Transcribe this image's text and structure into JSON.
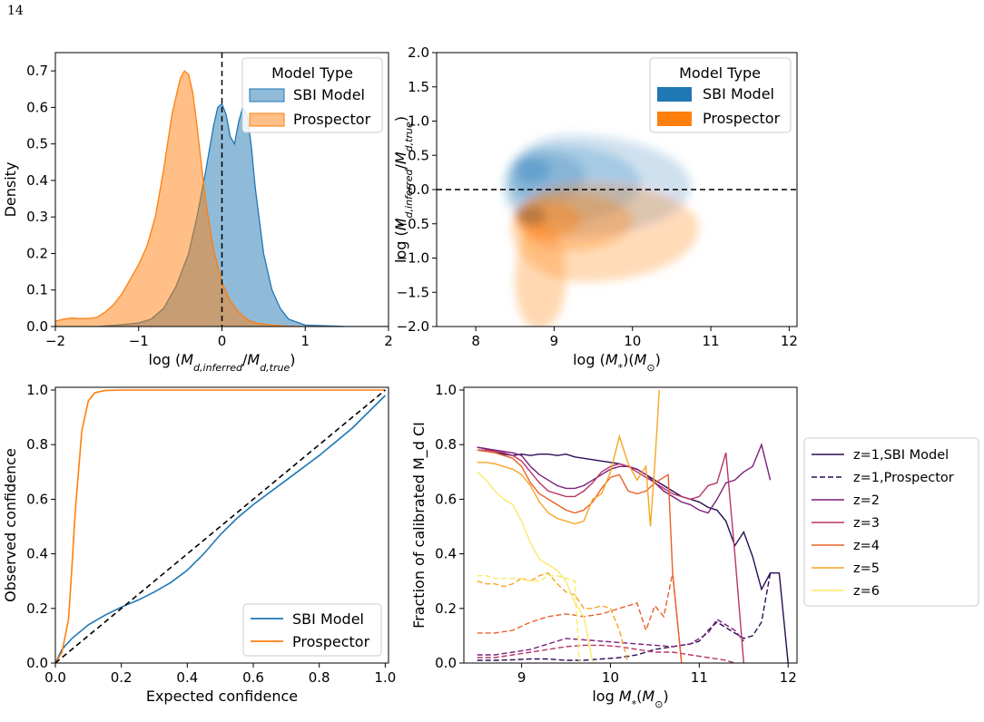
{
  "page_number": "14",
  "chart_data": [
    {
      "id": "density",
      "type": "area",
      "xlabel": "log (M_{d,inferred}/M_{d,true})",
      "ylabel": "Density",
      "xlim": [
        -2,
        2
      ],
      "ylim": [
        0,
        0.75
      ],
      "xticks": [
        "−2",
        "−1",
        "0",
        "1",
        "2"
      ],
      "yticks": [
        "0.0",
        "0.1",
        "0.2",
        "0.3",
        "0.4",
        "0.5",
        "0.6",
        "0.7"
      ],
      "reference_line": {
        "x": 0,
        "style": "dashed"
      },
      "legend": {
        "title": "Model Type",
        "placement": "top-right",
        "entries": [
          "SBI Model",
          "Prospector"
        ]
      },
      "series": [
        {
          "name": "SBI Model",
          "color": "#1f77b4",
          "x": [
            -2,
            -1.5,
            -1.2,
            -1.0,
            -0.85,
            -0.7,
            -0.55,
            -0.4,
            -0.3,
            -0.2,
            -0.1,
            -0.05,
            0.0,
            0.05,
            0.1,
            0.15,
            0.2,
            0.25,
            0.3,
            0.35,
            0.4,
            0.5,
            0.6,
            0.7,
            0.8,
            1.0,
            1.5,
            2.0
          ],
          "y": [
            0.0,
            0.0,
            0.005,
            0.01,
            0.02,
            0.05,
            0.11,
            0.2,
            0.3,
            0.42,
            0.55,
            0.6,
            0.61,
            0.58,
            0.52,
            0.5,
            0.56,
            0.6,
            0.58,
            0.5,
            0.38,
            0.2,
            0.1,
            0.05,
            0.02,
            0.004,
            0.0,
            0.0
          ]
        },
        {
          "name": "Prospector",
          "color": "#ff7f0e",
          "x": [
            -2,
            -1.9,
            -1.8,
            -1.7,
            -1.6,
            -1.5,
            -1.4,
            -1.3,
            -1.2,
            -1.1,
            -1.0,
            -0.9,
            -0.8,
            -0.7,
            -0.6,
            -0.5,
            -0.45,
            -0.4,
            -0.35,
            -0.3,
            -0.25,
            -0.2,
            -0.1,
            0.0,
            0.1,
            0.2,
            0.3,
            0.4,
            0.6,
            0.8,
            1.0,
            1.2
          ],
          "y": [
            0.015,
            0.02,
            0.023,
            0.022,
            0.022,
            0.025,
            0.04,
            0.06,
            0.09,
            0.13,
            0.17,
            0.22,
            0.3,
            0.43,
            0.58,
            0.68,
            0.7,
            0.69,
            0.64,
            0.55,
            0.45,
            0.35,
            0.21,
            0.12,
            0.07,
            0.04,
            0.02,
            0.01,
            0.004,
            0.001,
            0.0,
            0.0
          ]
        }
      ]
    },
    {
      "id": "kde",
      "type": "area",
      "xlabel": "log (M_*)(M_⊙)",
      "ylabel": "log (M_{d,inferred}/M_{d,true})",
      "xlim": [
        7.5,
        12.1
      ],
      "ylim": [
        -2.0,
        2.0
      ],
      "xticks": [
        "8",
        "9",
        "10",
        "11",
        "12"
      ],
      "yticks": [
        "−2.0",
        "−1.5",
        "−1.0",
        "−0.5",
        "0.0",
        "0.5",
        "1.0",
        "1.5",
        "2.0"
      ],
      "reference_line": {
        "y": 0,
        "style": "dashed"
      },
      "legend": {
        "title": "Model Type",
        "placement": "top-right",
        "entries": [
          "SBI Model",
          "Prospector"
        ]
      },
      "series": [
        {
          "name": "SBI Model",
          "color": "#1f77b4",
          "peak": [
            8.7,
            0.35
          ]
        },
        {
          "name": "Prospector",
          "color": "#ff7f0e",
          "peak": [
            8.7,
            -0.4
          ]
        }
      ]
    },
    {
      "id": "calibration",
      "type": "line",
      "xlabel": "Expected confidence",
      "ylabel": "Observed confidence",
      "xlim": [
        0,
        1.01
      ],
      "ylim": [
        0,
        1.01
      ],
      "xticks": [
        "0.0",
        "0.2",
        "0.4",
        "0.6",
        "0.8",
        "1.0"
      ],
      "yticks": [
        "0.0",
        "0.2",
        "0.4",
        "0.6",
        "0.8",
        "1.0"
      ],
      "legend": {
        "placement": "bottom-right",
        "entries": [
          "SBI Model",
          "Prospector"
        ]
      },
      "series": [
        {
          "name": "SBI Model",
          "color": "#1f77b4",
          "x": [
            0,
            0.02,
            0.05,
            0.1,
            0.15,
            0.2,
            0.25,
            0.3,
            0.35,
            0.4,
            0.45,
            0.5,
            0.55,
            0.6,
            0.7,
            0.8,
            0.9,
            1.0
          ],
          "y": [
            0,
            0.05,
            0.09,
            0.14,
            0.175,
            0.205,
            0.23,
            0.26,
            0.295,
            0.34,
            0.4,
            0.47,
            0.53,
            0.58,
            0.67,
            0.76,
            0.86,
            0.98
          ]
        },
        {
          "name": "Prospector",
          "color": "#ff7f0e",
          "x": [
            0,
            0.02,
            0.04,
            0.05,
            0.06,
            0.08,
            0.1,
            0.12,
            0.15,
            0.2,
            0.3,
            1.0
          ],
          "y": [
            0,
            0.04,
            0.16,
            0.35,
            0.55,
            0.85,
            0.96,
            0.99,
            0.998,
            1.0,
            1.0,
            1.0
          ]
        },
        {
          "name": "",
          "color": "#000000",
          "style": "dashed",
          "x": [
            0,
            1
          ],
          "y": [
            0,
            1
          ]
        }
      ]
    },
    {
      "id": "fraction",
      "type": "line",
      "xlabel": "log M_*(M_⊙)",
      "ylabel": "Fraction of calibrated M_d CI",
      "xlim": [
        8.35,
        12.1
      ],
      "ylim": [
        0,
        1.01
      ],
      "xticks": [
        "9",
        "10",
        "11",
        "12"
      ],
      "yticks": [
        "0.0",
        "0.2",
        "0.4",
        "0.6",
        "0.8",
        "1.0"
      ],
      "legend": {
        "placement": "outside-right",
        "entries": [
          "z=1,SBI Model",
          "z=1,Prospector",
          "z=2",
          "z=3",
          "z=4",
          "z=5",
          "z=6"
        ]
      },
      "series": [
        {
          "name": "z=1,SBI Model",
          "color": "#2b0d52",
          "style": "solid",
          "x": [
            8.5,
            8.6,
            8.7,
            8.8,
            8.9,
            9.0,
            9.1,
            9.2,
            9.3,
            9.4,
            9.5,
            9.6,
            9.7,
            9.8,
            9.9,
            10.0,
            10.1,
            10.2,
            10.3,
            10.4,
            10.5,
            10.6,
            10.7,
            10.8,
            10.9,
            11.0,
            11.1,
            11.2,
            11.3,
            11.4,
            11.5,
            11.6,
            11.7,
            11.8,
            11.9,
            12.0
          ],
          "y": [
            0.79,
            0.785,
            0.775,
            0.765,
            0.76,
            0.765,
            0.76,
            0.765,
            0.765,
            0.76,
            0.765,
            0.755,
            0.75,
            0.745,
            0.74,
            0.735,
            0.73,
            0.72,
            0.71,
            0.69,
            0.67,
            0.65,
            0.63,
            0.61,
            0.6,
            0.59,
            0.57,
            0.56,
            0.52,
            0.43,
            0.48,
            0.39,
            0.27,
            0.33,
            0.33,
            0.0
          ]
        },
        {
          "name": "z=1,Prospector",
          "color": "#2b0d52",
          "style": "dashed",
          "x": [
            8.5,
            8.7,
            8.9,
            9.1,
            9.3,
            9.5,
            9.7,
            9.9,
            10.1,
            10.3,
            10.5,
            10.7,
            10.9,
            11.0,
            11.1,
            11.2,
            11.3,
            11.4,
            11.5,
            11.6,
            11.7,
            11.8
          ],
          "y": [
            0.01,
            0.01,
            0.012,
            0.015,
            0.015,
            0.01,
            0.01,
            0.015,
            0.02,
            0.03,
            0.05,
            0.06,
            0.07,
            0.08,
            0.12,
            0.15,
            0.13,
            0.11,
            0.09,
            0.1,
            0.15,
            0.33
          ]
        },
        {
          "name": "z=2",
          "color": "#7b1f7a",
          "style": "solid",
          "x": [
            8.5,
            8.6,
            8.7,
            8.8,
            8.9,
            9.0,
            9.1,
            9.2,
            9.3,
            9.4,
            9.5,
            9.6,
            9.7,
            9.8,
            9.9,
            10.0,
            10.1,
            10.2,
            10.3,
            10.4,
            10.5,
            10.6,
            10.7,
            10.8,
            10.9,
            11.0,
            11.1,
            11.2,
            11.3,
            11.4,
            11.5,
            11.6,
            11.7,
            11.8
          ],
          "y": [
            0.79,
            0.785,
            0.78,
            0.775,
            0.77,
            0.76,
            0.72,
            0.69,
            0.67,
            0.65,
            0.64,
            0.64,
            0.65,
            0.67,
            0.69,
            0.71,
            0.72,
            0.72,
            0.71,
            0.69,
            0.66,
            0.63,
            0.61,
            0.59,
            0.58,
            0.56,
            0.55,
            0.6,
            0.66,
            0.67,
            0.7,
            0.72,
            0.8,
            0.67
          ]
        },
        {
          "name": "",
          "color": "#7b1f7a",
          "style": "dashed",
          "x": [
            8.5,
            8.7,
            8.9,
            9.1,
            9.3,
            9.5,
            9.7,
            9.9,
            10.1,
            10.3,
            10.5,
            10.7,
            10.9,
            11.1,
            11.2,
            11.3,
            11.4,
            11.5
          ],
          "y": [
            0.03,
            0.03,
            0.04,
            0.05,
            0.07,
            0.09,
            0.085,
            0.08,
            0.075,
            0.07,
            0.065,
            0.06,
            0.07,
            0.11,
            0.16,
            0.14,
            0.12,
            0.08
          ]
        },
        {
          "name": "z=3",
          "color": "#b8346a",
          "style": "solid",
          "x": [
            8.5,
            8.6,
            8.7,
            8.8,
            8.9,
            9.0,
            9.1,
            9.2,
            9.3,
            9.4,
            9.5,
            9.6,
            9.7,
            9.8,
            9.9,
            10.0,
            10.1,
            10.2,
            10.3,
            10.4,
            10.5,
            10.6,
            10.7,
            10.8,
            10.9,
            11.0,
            11.1,
            11.2,
            11.3,
            11.4,
            11.5
          ],
          "y": [
            0.78,
            0.78,
            0.775,
            0.77,
            0.76,
            0.74,
            0.7,
            0.66,
            0.63,
            0.62,
            0.61,
            0.61,
            0.63,
            0.66,
            0.7,
            0.72,
            0.73,
            0.72,
            0.7,
            0.68,
            0.66,
            0.64,
            0.62,
            0.61,
            0.6,
            0.61,
            0.65,
            0.66,
            0.77,
            0.4,
            0.0
          ]
        },
        {
          "name": "",
          "color": "#b8346a",
          "style": "dashed",
          "x": [
            8.5,
            8.7,
            8.9,
            9.1,
            9.3,
            9.5,
            9.7,
            9.9,
            10.1,
            10.3,
            10.5,
            10.7,
            10.9,
            11.1,
            11.3,
            11.4
          ],
          "y": [
            0.02,
            0.02,
            0.03,
            0.04,
            0.05,
            0.06,
            0.065,
            0.065,
            0.06,
            0.05,
            0.04,
            0.04,
            0.03,
            0.02,
            0.01,
            0.0
          ]
        },
        {
          "name": "z=4",
          "color": "#e9602a",
          "style": "solid",
          "x": [
            8.5,
            8.6,
            8.7,
            8.8,
            8.9,
            9.0,
            9.1,
            9.2,
            9.3,
            9.4,
            9.5,
            9.6,
            9.7,
            9.8,
            9.9,
            10.0,
            10.1,
            10.2,
            10.3,
            10.4,
            10.5,
            10.6,
            10.65,
            10.7,
            10.8
          ],
          "y": [
            0.78,
            0.775,
            0.77,
            0.76,
            0.75,
            0.72,
            0.66,
            0.62,
            0.6,
            0.58,
            0.56,
            0.55,
            0.56,
            0.59,
            0.64,
            0.68,
            0.69,
            0.63,
            0.62,
            0.63,
            0.66,
            0.68,
            0.69,
            0.33,
            0.0
          ]
        },
        {
          "name": "",
          "color": "#e9602a",
          "style": "dashed",
          "x": [
            8.5,
            8.7,
            8.9,
            9.1,
            9.3,
            9.5,
            9.7,
            9.9,
            10.1,
            10.3,
            10.4,
            10.5,
            10.6,
            10.7,
            10.8
          ],
          "y": [
            0.11,
            0.11,
            0.12,
            0.15,
            0.17,
            0.18,
            0.17,
            0.18,
            0.2,
            0.22,
            0.12,
            0.21,
            0.17,
            0.33,
            0.0
          ]
        },
        {
          "name": "z=5",
          "color": "#f6a623",
          "style": "solid",
          "x": [
            8.5,
            8.6,
            8.7,
            8.8,
            8.9,
            9.0,
            9.1,
            9.2,
            9.3,
            9.4,
            9.5,
            9.6,
            9.7,
            9.8,
            9.9,
            10.0,
            10.1,
            10.2,
            10.3,
            10.4,
            10.45,
            10.5,
            10.55
          ],
          "y": [
            0.735,
            0.735,
            0.73,
            0.72,
            0.71,
            0.69,
            0.65,
            0.59,
            0.55,
            0.53,
            0.52,
            0.51,
            0.52,
            0.6,
            0.62,
            0.7,
            0.83,
            0.73,
            0.67,
            0.72,
            0.5,
            0.73,
            1.0
          ]
        },
        {
          "name": "",
          "color": "#f6a623",
          "style": "dashed",
          "x": [
            8.5,
            8.6,
            8.7,
            8.8,
            8.9,
            9.0,
            9.1,
            9.2,
            9.3,
            9.4,
            9.5,
            9.6,
            9.7,
            9.8,
            9.9,
            10.0,
            10.1,
            10.2
          ],
          "y": [
            0.3,
            0.29,
            0.29,
            0.28,
            0.29,
            0.31,
            0.3,
            0.32,
            0.33,
            0.29,
            0.26,
            0.25,
            0.2,
            0.2,
            0.21,
            0.2,
            0.12,
            0.0
          ]
        },
        {
          "name": "z=6",
          "color": "#fbe96c",
          "style": "solid",
          "x": [
            8.5,
            8.6,
            8.7,
            8.8,
            8.9,
            9.0,
            9.1,
            9.2,
            9.3,
            9.4,
            9.5,
            9.6,
            9.7,
            9.8
          ],
          "y": [
            0.7,
            0.67,
            0.63,
            0.6,
            0.58,
            0.52,
            0.44,
            0.38,
            0.36,
            0.34,
            0.3,
            0.22,
            0.17,
            0.0
          ]
        },
        {
          "name": "",
          "color": "#fbe96c",
          "style": "dashed",
          "x": [
            8.5,
            8.6,
            8.7,
            8.8,
            8.9,
            9.0,
            9.1,
            9.2,
            9.3,
            9.4,
            9.5,
            9.6,
            9.65
          ],
          "y": [
            0.32,
            0.32,
            0.31,
            0.31,
            0.31,
            0.31,
            0.3,
            0.3,
            0.32,
            0.32,
            0.31,
            0.3,
            0.0
          ]
        }
      ]
    }
  ]
}
